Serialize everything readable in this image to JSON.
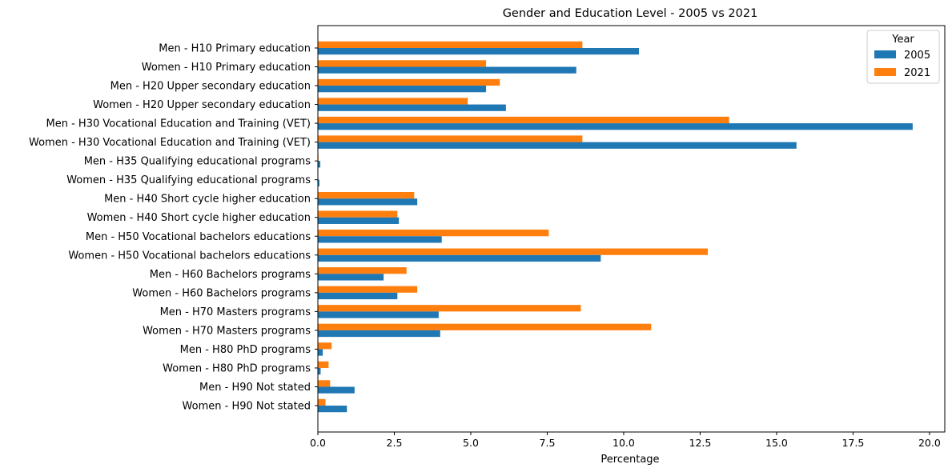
{
  "chart_data": {
    "type": "bar",
    "orientation": "horizontal",
    "title": "Gender and Education Level - 2005 vs 2021",
    "xlabel": "Percentage",
    "ylabel": "",
    "xlim": [
      0,
      20.5
    ],
    "xticks": [
      0.0,
      2.5,
      5.0,
      7.5,
      10.0,
      12.5,
      15.0,
      17.5,
      20.0
    ],
    "xtick_labels": [
      "0.0",
      "2.5",
      "5.0",
      "7.5",
      "10.0",
      "12.5",
      "15.0",
      "17.5",
      "20.0"
    ],
    "grid": false,
    "legend": {
      "title": "Year",
      "placement": "top-right"
    },
    "categories": [
      "Men - H10 Primary education",
      "Women - H10 Primary education",
      "Men - H20 Upper secondary education",
      "Women - H20 Upper secondary education",
      "Men - H30 Vocational Education and Training (VET)",
      "Women - H30 Vocational Education and Training (VET)",
      "Men - H35 Qualifying educational programs",
      "Women - H35 Qualifying educational programs",
      "Men - H40 Short cycle higher education",
      "Women - H40 Short cycle higher education",
      "Men - H50 Vocational bachelors educations",
      "Women - H50 Vocational bachelors educations",
      "Men - H60 Bachelors programs",
      "Women - H60 Bachelors programs",
      "Men - H70 Masters programs",
      "Women - H70 Masters programs",
      "Men - H80 PhD programs",
      "Women - H80 PhD programs",
      "Men - H90 Not stated",
      "Women - H90 Not stated"
    ],
    "series": [
      {
        "name": "2005",
        "color": "#1f77b4",
        "values": [
          10.5,
          8.45,
          5.5,
          6.15,
          19.45,
          15.65,
          0.08,
          0.05,
          3.25,
          2.65,
          4.05,
          9.25,
          2.15,
          2.6,
          3.95,
          4.0,
          0.16,
          0.09,
          1.2,
          0.95
        ]
      },
      {
        "name": "2021",
        "color": "#ff7f0e",
        "values": [
          8.65,
          5.5,
          5.95,
          4.9,
          13.45,
          8.65,
          0.02,
          0.01,
          3.15,
          2.6,
          7.55,
          12.75,
          2.9,
          3.25,
          8.6,
          10.9,
          0.45,
          0.35,
          0.4,
          0.25
        ]
      }
    ]
  }
}
